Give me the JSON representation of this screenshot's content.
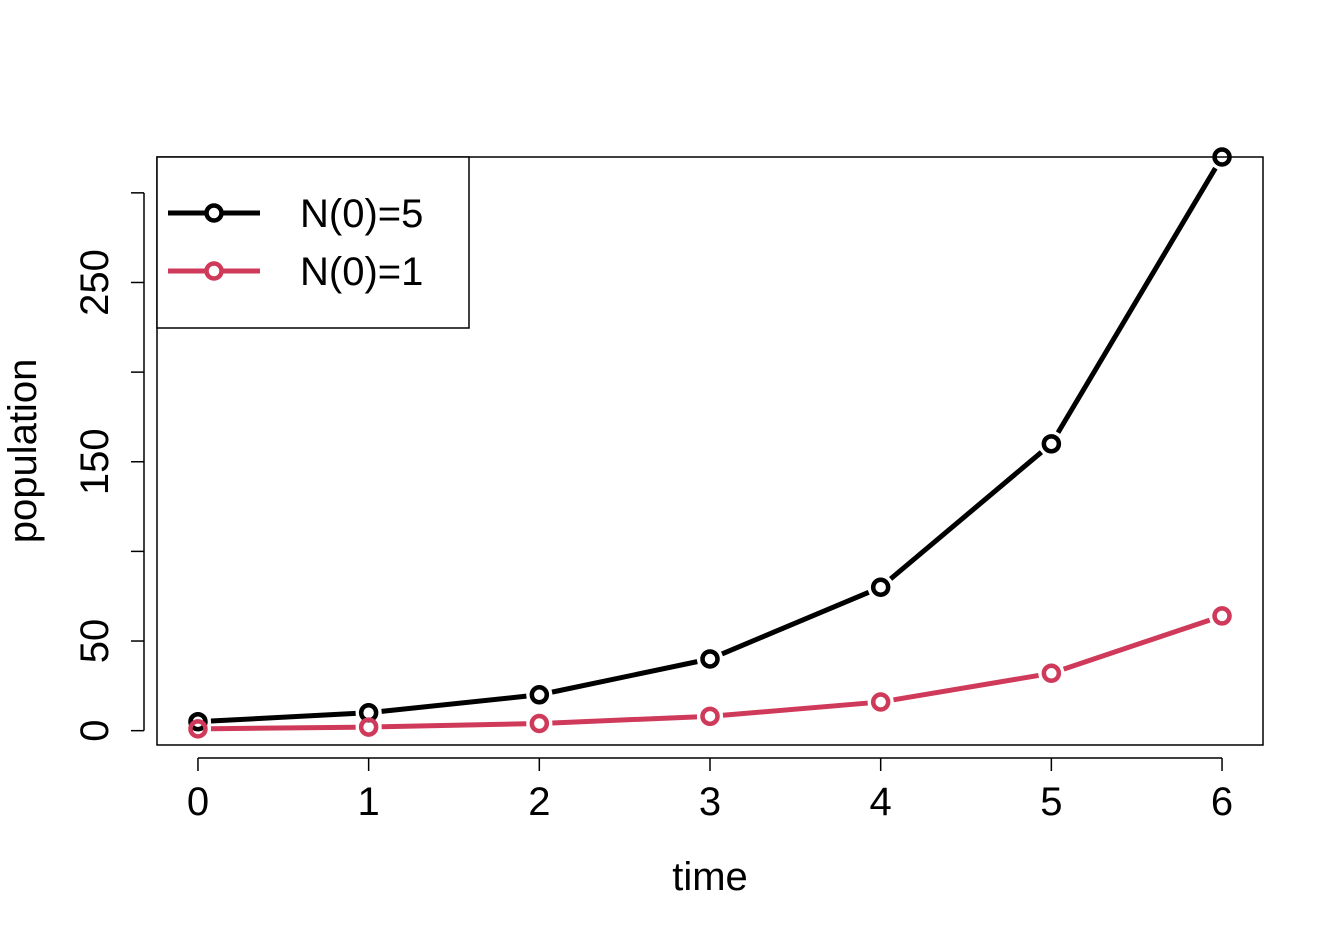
{
  "chart_data": {
    "type": "line",
    "title": "",
    "xlabel": "time",
    "ylabel": "population",
    "x": [
      0,
      1,
      2,
      3,
      4,
      5,
      6
    ],
    "xticks": [
      0,
      1,
      2,
      3,
      4,
      5,
      6
    ],
    "xtick_labels": [
      "0",
      "1",
      "2",
      "3",
      "4",
      "5",
      "6"
    ],
    "yticks": [
      0,
      50,
      100,
      150,
      200,
      250,
      300
    ],
    "ytick_labels": [
      "0",
      "50",
      "",
      "150",
      "",
      "250",
      ""
    ],
    "xlim": [
      -0.24,
      6.24
    ],
    "ylim": [
      -8,
      320
    ],
    "grid": false,
    "legend_position": "top-left",
    "series": [
      {
        "name": "N(0)=5",
        "color": "#000000",
        "values": [
          5,
          10,
          20,
          40,
          80,
          160,
          320
        ],
        "marker": "open-circle"
      },
      {
        "name": "N(0)=1",
        "color": "#d03a5a",
        "values": [
          1,
          2,
          4,
          8,
          16,
          32,
          64
        ],
        "marker": "open-circle"
      }
    ]
  }
}
